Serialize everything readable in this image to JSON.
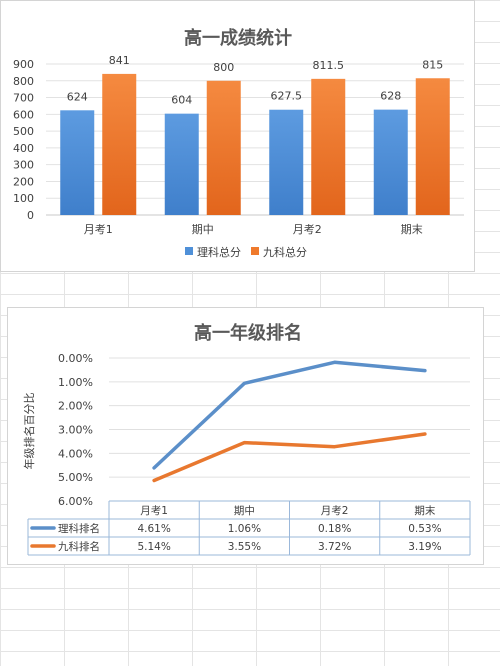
{
  "chart_data": [
    {
      "type": "bar",
      "title": "高一成绩统计",
      "categories": [
        "月考1",
        "期中",
        "月考2",
        "期末"
      ],
      "series": [
        {
          "name": "理科总分",
          "values": [
            624,
            604,
            627.5,
            628
          ],
          "labels": [
            "624",
            "604",
            "627.5",
            "628"
          ],
          "color": "#4f90d8"
        },
        {
          "name": "九科总分",
          "values": [
            841,
            800,
            811.5,
            815
          ],
          "labels": [
            "841",
            "800",
            "811.5",
            "815"
          ],
          "color": "#ef7a2c"
        }
      ],
      "yticks": [
        "0",
        "100",
        "200",
        "300",
        "400",
        "500",
        "600",
        "700",
        "800",
        "900"
      ],
      "ylim": [
        0,
        900
      ],
      "grid": true,
      "legend": "bottom"
    },
    {
      "type": "line",
      "title": "高一年级排名",
      "ylabel": "年级排名百分比",
      "categories": [
        "月考1",
        "期中",
        "月考2",
        "期末"
      ],
      "yreversed": true,
      "ylim": [
        0,
        6
      ],
      "yticks": [
        "0.00%",
        "1.00%",
        "2.00%",
        "3.00%",
        "4.00%",
        "5.00%",
        "6.00%"
      ],
      "series": [
        {
          "name": "理科排名",
          "values": [
            4.61,
            1.06,
            0.18,
            0.53
          ],
          "labels": [
            "4.61%",
            "1.06%",
            "0.18%",
            "0.53%"
          ],
          "color": "#5b8fc9"
        },
        {
          "name": "九科排名",
          "values": [
            5.14,
            3.55,
            3.72,
            3.19
          ],
          "labels": [
            "5.14%",
            "3.55%",
            "3.72%",
            "3.19%"
          ],
          "color": "#e8782f"
        }
      ],
      "grid": true,
      "data_table": true
    }
  ]
}
